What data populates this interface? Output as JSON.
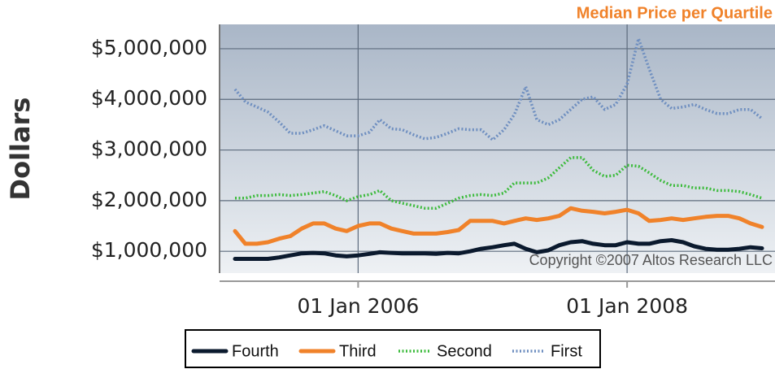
{
  "chart_data": {
    "type": "line",
    "title": "Median Price per Quartile",
    "y_label": "Dollars",
    "annotation": "Copyright ©2007 Altos Research LLC",
    "x": [
      "2005-02-01",
      "2005-03-01",
      "2005-04-01",
      "2005-05-01",
      "2005-06-01",
      "2005-07-01",
      "2005-08-01",
      "2005-09-01",
      "2005-10-01",
      "2005-11-01",
      "2005-12-01",
      "2006-01-01",
      "2006-02-01",
      "2006-03-01",
      "2006-04-01",
      "2006-05-01",
      "2006-06-01",
      "2006-07-01",
      "2006-08-01",
      "2006-09-01",
      "2006-10-01",
      "2006-11-01",
      "2006-12-01",
      "2007-01-01",
      "2007-02-01",
      "2007-03-01",
      "2007-04-01",
      "2007-05-01",
      "2007-06-01",
      "2007-07-01",
      "2007-08-01",
      "2007-09-01",
      "2007-10-01",
      "2007-11-01",
      "2007-12-01",
      "2008-01-01",
      "2008-02-01",
      "2008-03-01",
      "2008-04-01",
      "2008-05-01",
      "2008-06-01",
      "2008-07-01",
      "2008-08-01",
      "2008-09-01",
      "2008-10-01",
      "2008-11-01",
      "2008-12-01",
      "2009-01-01"
    ],
    "series": [
      {
        "name": "Fourth",
        "color": "#0b1a2e",
        "style": "solid",
        "values": [
          850000,
          850000,
          850000,
          850000,
          880000,
          920000,
          960000,
          970000,
          960000,
          920000,
          900000,
          920000,
          950000,
          980000,
          970000,
          960000,
          960000,
          960000,
          950000,
          970000,
          960000,
          1000000,
          1050000,
          1080000,
          1120000,
          1150000,
          1050000,
          980000,
          1020000,
          1120000,
          1180000,
          1200000,
          1150000,
          1120000,
          1120000,
          1180000,
          1150000,
          1150000,
          1200000,
          1220000,
          1180000,
          1100000,
          1050000,
          1030000,
          1030000,
          1050000,
          1080000,
          1060000
        ]
      },
      {
        "name": "Third",
        "color": "#f0822a",
        "style": "solid",
        "values": [
          1400000,
          1150000,
          1150000,
          1180000,
          1250000,
          1300000,
          1450000,
          1550000,
          1550000,
          1450000,
          1400000,
          1500000,
          1550000,
          1550000,
          1450000,
          1400000,
          1350000,
          1350000,
          1350000,
          1380000,
          1420000,
          1600000,
          1600000,
          1600000,
          1550000,
          1600000,
          1650000,
          1620000,
          1650000,
          1700000,
          1850000,
          1800000,
          1780000,
          1750000,
          1780000,
          1820000,
          1750000,
          1600000,
          1620000,
          1650000,
          1620000,
          1650000,
          1680000,
          1700000,
          1700000,
          1650000,
          1550000,
          1480000
        ]
      },
      {
        "name": "Second",
        "color": "#3dbb3d",
        "style": "dotted",
        "values": [
          2050000,
          2050000,
          2100000,
          2100000,
          2120000,
          2100000,
          2120000,
          2150000,
          2180000,
          2100000,
          2000000,
          2080000,
          2120000,
          2200000,
          2000000,
          1950000,
          1900000,
          1850000,
          1850000,
          1950000,
          2050000,
          2100000,
          2120000,
          2100000,
          2150000,
          2350000,
          2350000,
          2350000,
          2450000,
          2650000,
          2850000,
          2850000,
          2600000,
          2480000,
          2500000,
          2700000,
          2680000,
          2550000,
          2400000,
          2300000,
          2300000,
          2250000,
          2250000,
          2200000,
          2200000,
          2180000,
          2120000,
          2050000
        ]
      },
      {
        "name": "First",
        "color": "#6f8fc0",
        "style": "dotted",
        "values": [
          4200000,
          3950000,
          3850000,
          3750000,
          3550000,
          3330000,
          3330000,
          3400000,
          3480000,
          3380000,
          3280000,
          3280000,
          3350000,
          3600000,
          3420000,
          3400000,
          3300000,
          3220000,
          3250000,
          3330000,
          3420000,
          3400000,
          3400000,
          3200000,
          3400000,
          3700000,
          4250000,
          3600000,
          3500000,
          3600000,
          3800000,
          4000000,
          4050000,
          3800000,
          3900000,
          4300000,
          5200000,
          4600000,
          4000000,
          3820000,
          3850000,
          3900000,
          3800000,
          3720000,
          3720000,
          3800000,
          3800000,
          3620000
        ]
      }
    ],
    "xlim": [
      "2005-01-01",
      "2009-02-01"
    ],
    "xticks": [
      {
        "value": "2006-01-01",
        "label": "01 Jan 2006"
      },
      {
        "value": "2008-01-01",
        "label": "01 Jan 2008"
      }
    ],
    "ylim": [
      570000,
      5480000
    ],
    "yticks": [
      {
        "value": 1000000,
        "label": "$1,000,000"
      },
      {
        "value": 2000000,
        "label": "$2,000,000"
      },
      {
        "value": 3000000,
        "label": "$3,000,000"
      },
      {
        "value": 4000000,
        "label": "$4,000,000"
      },
      {
        "value": 5000000,
        "label": "$5,000,000"
      }
    ],
    "grid": true,
    "legend": "bottom"
  }
}
